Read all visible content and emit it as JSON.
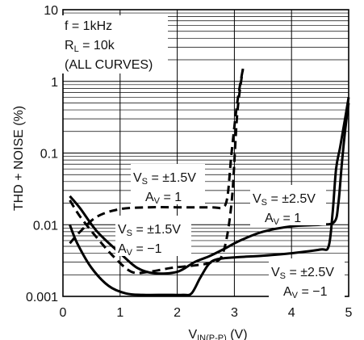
{
  "chart_data": {
    "type": "line",
    "xlabel": "V",
    "xlabel_sub": "IN(P-P)",
    "xlabel_unit": " (V)",
    "ylabel": "THD + NOISE (%)",
    "xlim": [
      0,
      5
    ],
    "ylim": [
      0.001,
      10
    ],
    "yscale": "log",
    "grid": true,
    "x_ticks": [
      "0",
      "1",
      "2",
      "3",
      "4",
      "5"
    ],
    "y_ticks": [
      "0.001",
      "0.01",
      "0.1",
      "1",
      "10"
    ],
    "conditions": {
      "line1": "f = 1kHz",
      "line2_main": "R",
      "line2_sub": "L",
      "line2_rest": " = 10k",
      "line3": "(ALL CURVES)"
    },
    "series": [
      {
        "style": "dashed",
        "label_vs": "= ±1.5V",
        "label_av": "= 1",
        "x": [
          0.12,
          0.3,
          0.6,
          1.0,
          1.5,
          2.0,
          2.6,
          2.8,
          2.88,
          2.95,
          3.05,
          3.15
        ],
        "y": [
          0.0055,
          0.008,
          0.013,
          0.0165,
          0.0175,
          0.0175,
          0.0175,
          0.0175,
          0.025,
          0.1,
          0.5,
          1.5
        ]
      },
      {
        "style": "dashed",
        "label_vs": "= ±1.5V",
        "label_av": "= −1",
        "x": [
          0.12,
          0.3,
          0.6,
          0.9,
          1.2,
          1.5,
          1.9,
          2.3,
          2.6,
          2.8,
          2.95,
          3.05,
          3.15
        ],
        "y": [
          0.022,
          0.013,
          0.0065,
          0.0035,
          0.0022,
          0.0022,
          0.0025,
          0.0027,
          0.003,
          0.004,
          0.02,
          0.35,
          1.5
        ]
      },
      {
        "style": "solid",
        "label_vs": "= ±2.5V",
        "label_av": "= 1",
        "x": [
          0.12,
          0.3,
          0.6,
          1.0,
          1.3,
          1.6,
          2.0,
          2.3,
          2.55,
          2.8,
          3.1,
          3.5,
          4.0,
          4.5,
          4.75,
          4.82,
          4.88,
          4.95,
          5.0
        ],
        "y": [
          0.025,
          0.017,
          0.008,
          0.004,
          0.0025,
          0.0021,
          0.0022,
          0.003,
          0.0036,
          0.0045,
          0.006,
          0.008,
          0.0095,
          0.01,
          0.011,
          0.02,
          0.07,
          0.25,
          0.5
        ]
      },
      {
        "style": "solid",
        "label_vs": "= ±2.5V",
        "label_av": "= −1",
        "x": [
          0.12,
          0.25,
          0.5,
          0.8,
          1.1,
          1.4,
          1.8,
          2.1,
          2.25,
          2.4,
          2.55,
          2.7,
          3.0,
          3.5,
          4.0,
          4.5,
          4.65,
          4.72,
          4.78,
          4.85,
          4.92,
          5.0
        ],
        "y": [
          0.01,
          0.0055,
          0.0025,
          0.0014,
          0.0011,
          0.00105,
          0.00105,
          0.00105,
          0.0011,
          0.0018,
          0.0028,
          0.0033,
          0.0035,
          0.0037,
          0.004,
          0.0045,
          0.005,
          0.015,
          0.06,
          0.12,
          0.25,
          0.6
        ]
      }
    ]
  }
}
